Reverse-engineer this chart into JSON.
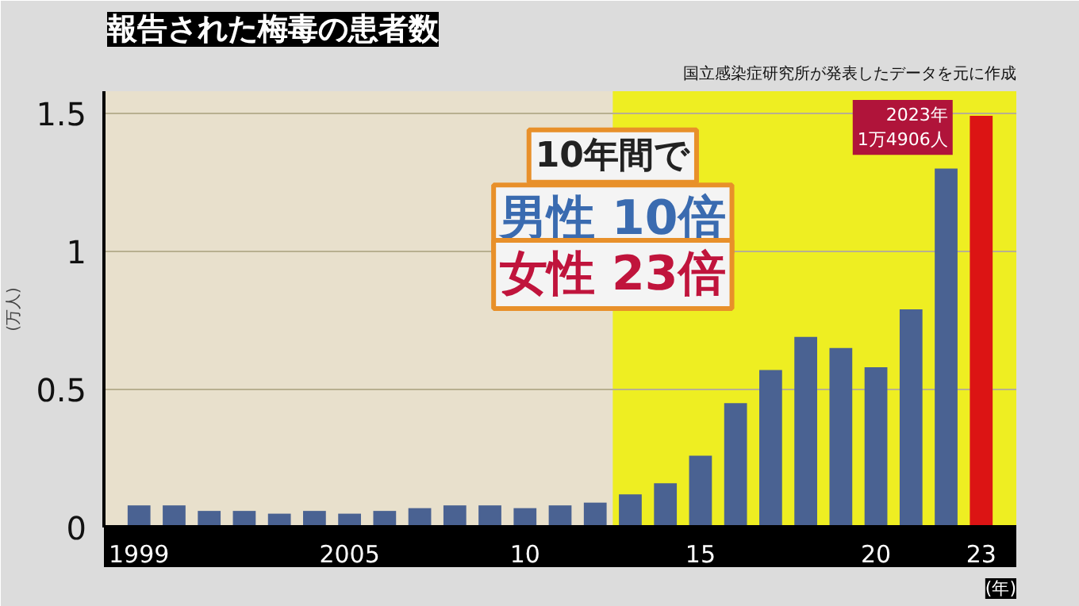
{
  "chart_data": {
    "type": "bar",
    "title": "報告された梅毒の患者数",
    "subtitle": "国立感染症研究所が発表したデータを元に作成",
    "ylabel": "(万人)",
    "x": [
      1999,
      2000,
      2001,
      2002,
      2003,
      2004,
      2005,
      2006,
      2007,
      2008,
      2009,
      2010,
      2011,
      2012,
      2013,
      2014,
      2015,
      2016,
      2017,
      2018,
      2019,
      2020,
      2021,
      2022,
      2023
    ],
    "values": [
      0.08,
      0.08,
      0.06,
      0.06,
      0.05,
      0.06,
      0.05,
      0.06,
      0.07,
      0.08,
      0.08,
      0.07,
      0.08,
      0.09,
      0.12,
      0.16,
      0.26,
      0.45,
      0.57,
      0.69,
      0.65,
      0.58,
      0.79,
      1.3,
      1.4906
    ],
    "colors": [
      "#4a6292",
      "#4a6292",
      "#4a6292",
      "#4a6292",
      "#4a6292",
      "#4a6292",
      "#4a6292",
      "#4a6292",
      "#4a6292",
      "#4a6292",
      "#4a6292",
      "#4a6292",
      "#4a6292",
      "#4a6292",
      "#4a6292",
      "#4a6292",
      "#4a6292",
      "#4a6292",
      "#4a6292",
      "#4a6292",
      "#4a6292",
      "#4a6292",
      "#4a6292",
      "#4a6292",
      "#dc1414"
    ],
    "xlabel": "(年)",
    "xlim": [
      1998.0,
      2024.0
    ],
    "xticks": [
      1999,
      2005,
      {
        "value": 2010,
        "label": "10"
      },
      {
        "value": 2015,
        "label": "15"
      },
      {
        "value": 2020,
        "label": "20"
      },
      {
        "value": 2023,
        "label": "23"
      }
    ],
    "ylim": [
      0,
      1.58
    ],
    "yticks": [
      0,
      0.5,
      1,
      1.5
    ],
    "grid": "y",
    "bands": [
      {
        "axis": "x",
        "from": 1998.0,
        "to": 2012.5,
        "color": "#e8e0cc"
      },
      {
        "axis": "x",
        "from": 2012.5,
        "to": 2024.0,
        "color": "#eeee22"
      }
    ],
    "annotations": [
      "10年間で",
      "男性 10倍",
      "女性 23倍",
      {
        "text": "2023年\n1万4906人",
        "x": 2023,
        "y": 1.4906
      }
    ]
  }
}
